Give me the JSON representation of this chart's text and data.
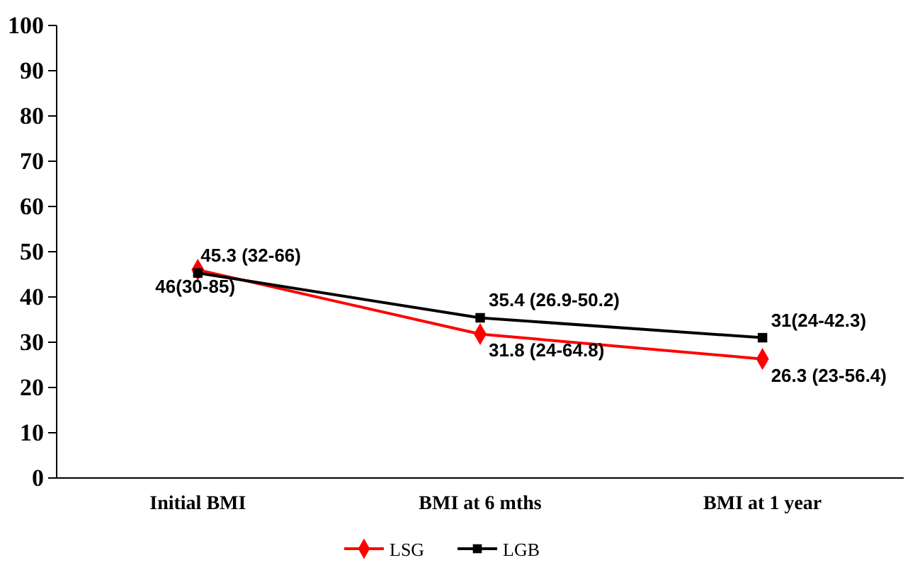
{
  "chart_data": {
    "type": "line",
    "categories": [
      "Initial BMI",
      "BMI at 6 mths",
      "BMI at 1 year"
    ],
    "series": [
      {
        "name": "LSG",
        "color": "#ff0000",
        "marker": "diamond",
        "values": [
          46,
          31.8,
          26.3
        ],
        "value_labels": [
          "46(30-85)",
          "31.8 (24-64.8)",
          "26.3 (23-56.4)"
        ]
      },
      {
        "name": "LGB",
        "color": "#000000",
        "marker": "square",
        "values": [
          45.3,
          35.4,
          31
        ],
        "value_labels": [
          "45.3 (32-66)",
          "35.4 (26.9-50.2)",
          "31(24-42.3)"
        ]
      }
    ],
    "ylim": [
      0,
      100
    ],
    "yticks": [
      0,
      10,
      20,
      30,
      40,
      50,
      60,
      70,
      80,
      90,
      100
    ],
    "grid": false,
    "legend": "bottom",
    "line_style": "solid"
  }
}
